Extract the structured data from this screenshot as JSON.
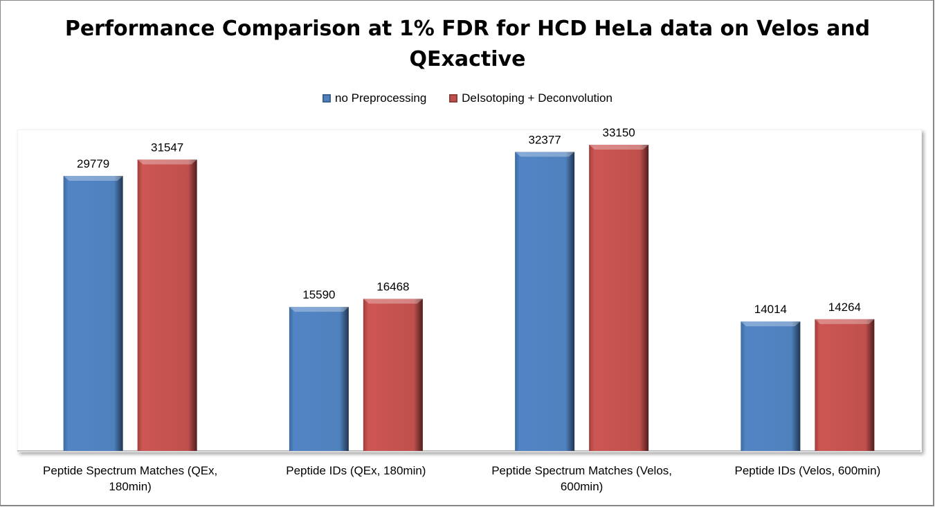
{
  "chart_data": {
    "type": "bar",
    "title": "Performance Comparison at 1% FDR for HCD HeLa data on Velos and QExactive",
    "title_lines": [
      "Performance Comparison at 1% FDR for HCD HeLa data on Velos and",
      "QExactive"
    ],
    "categories": [
      [
        "Peptide Spectrum Matches (QEx,",
        "180min)"
      ],
      [
        "Peptide IDs (QEx, 180min)"
      ],
      [
        "Peptide Spectrum Matches (Velos,",
        "600min)"
      ],
      [
        "Peptide IDs (Velos, 600min)"
      ]
    ],
    "series": [
      {
        "name": "no Preprocessing",
        "color": "#4f81bd",
        "values": [
          29779,
          15590,
          32377,
          14014
        ]
      },
      {
        "name": "DeIsotoping + Deconvolution",
        "color": "#c0504d",
        "values": [
          31547,
          16468,
          33150,
          14264
        ]
      }
    ],
    "xlabel": "",
    "ylabel": "",
    "ylim": [
      0,
      34800
    ],
    "legend_position": "top",
    "grid": false
  }
}
